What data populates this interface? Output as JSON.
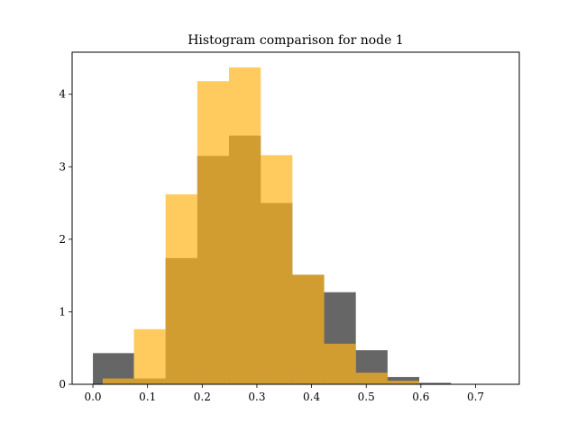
{
  "chart_data": {
    "type": "bar",
    "subtype": "overlapping-histogram",
    "title": "Histogram comparison for node 1",
    "xlabel": "",
    "ylabel": "",
    "xlim": [
      -0.038,
      0.78
    ],
    "ylim": [
      0,
      4.58
    ],
    "xticks": [
      0.0,
      0.1,
      0.2,
      0.3,
      0.4,
      0.5,
      0.6,
      0.7
    ],
    "yticks": [
      0,
      1,
      2,
      3,
      4
    ],
    "grid": false,
    "legend": "none",
    "series": [
      {
        "color": "#333333",
        "opacity": 0.75,
        "bin_edges": [
          0.0,
          0.075,
          0.133,
          0.191,
          0.249,
          0.307,
          0.365,
          0.423,
          0.481,
          0.539,
          0.597,
          0.655,
          0.713
        ],
        "values": [
          0.43,
          0.08,
          1.74,
          3.15,
          3.43,
          2.5,
          1.51,
          1.27,
          0.47,
          0.1,
          0.02,
          0.0
        ]
      },
      {
        "color": "#ffb31a",
        "opacity": 0.7,
        "bin_edges": [
          0.018,
          0.075,
          0.133,
          0.191,
          0.249,
          0.307,
          0.365,
          0.423,
          0.481,
          0.539,
          0.597,
          0.655,
          0.713
        ],
        "values": [
          0.08,
          0.76,
          2.62,
          4.18,
          4.37,
          3.16,
          1.51,
          0.56,
          0.16,
          0.05,
          0.0,
          0.0
        ]
      }
    ]
  }
}
